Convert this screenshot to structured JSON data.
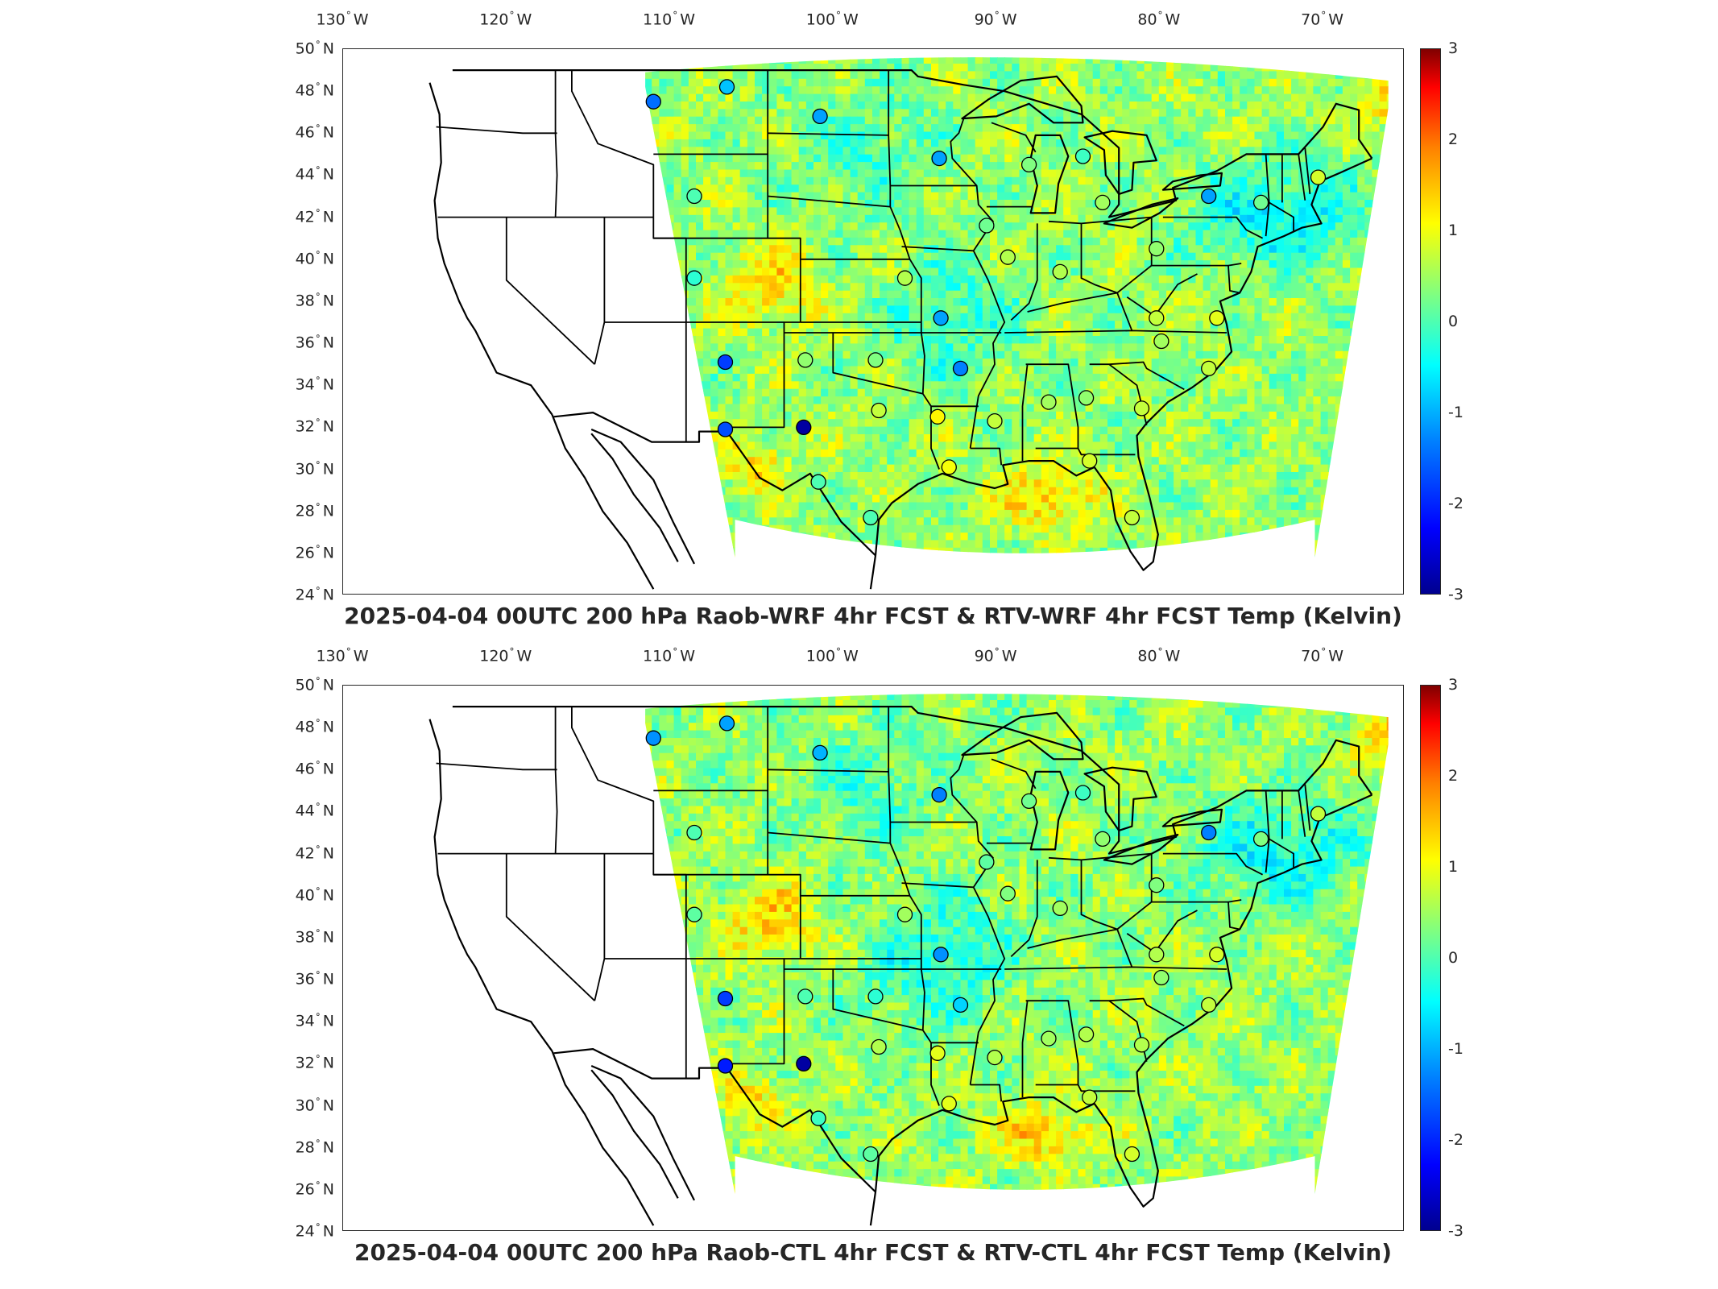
{
  "panels": [
    {
      "title": "2025-04-04 00UTC 200 hPa Raob-WRF 4hr FCST & RTV-WRF 4hr FCST Temp (Kelvin)"
    },
    {
      "title": "2025-04-04 00UTC 200 hPa Raob-CTL 4hr FCST & RTV-CTL 4hr FCST Temp (Kelvin)"
    }
  ],
  "axes": {
    "lon_ticks": [
      {
        "value": "130",
        "hemi": "W"
      },
      {
        "value": "120",
        "hemi": "W"
      },
      {
        "value": "110",
        "hemi": "W"
      },
      {
        "value": "100",
        "hemi": "W"
      },
      {
        "value": "90",
        "hemi": "W"
      },
      {
        "value": "80",
        "hemi": "W"
      },
      {
        "value": "70",
        "hemi": "W"
      }
    ],
    "lat_ticks": [
      {
        "value": "50",
        "hemi": "N"
      },
      {
        "value": "48",
        "hemi": "N"
      },
      {
        "value": "46",
        "hemi": "N"
      },
      {
        "value": "44",
        "hemi": "N"
      },
      {
        "value": "42",
        "hemi": "N"
      },
      {
        "value": "40",
        "hemi": "N"
      },
      {
        "value": "38",
        "hemi": "N"
      },
      {
        "value": "36",
        "hemi": "N"
      },
      {
        "value": "34",
        "hemi": "N"
      },
      {
        "value": "32",
        "hemi": "N"
      },
      {
        "value": "30",
        "hemi": "N"
      },
      {
        "value": "28",
        "hemi": "N"
      },
      {
        "value": "26",
        "hemi": "N"
      },
      {
        "value": "24",
        "hemi": "N"
      }
    ],
    "lon_range": [
      -130,
      -65
    ],
    "lat_range": [
      24,
      50
    ]
  },
  "colorbar": {
    "ticks": [
      "3",
      "2",
      "1",
      "0",
      "-1",
      "-2",
      "-3"
    ],
    "range": [
      -3,
      3
    ],
    "colormap": "jet"
  },
  "stations": [
    {
      "lon": -111.0,
      "lat": 47.5,
      "v_top": -1.6,
      "v_bottom": -1.4
    },
    {
      "lon": -106.5,
      "lat": 48.2,
      "v_top": -1.1,
      "v_bottom": -1.3
    },
    {
      "lon": -100.8,
      "lat": 46.8,
      "v_top": -1.3,
      "v_bottom": -1.2
    },
    {
      "lon": -93.5,
      "lat": 44.8,
      "v_top": -1.3,
      "v_bottom": -1.5
    },
    {
      "lon": -108.5,
      "lat": 43.0,
      "v_top": -0.3,
      "v_bottom": -0.3
    },
    {
      "lon": -108.5,
      "lat": 39.1,
      "v_top": -0.5,
      "v_bottom": -0.2
    },
    {
      "lon": -106.6,
      "lat": 35.1,
      "v_top": -1.9,
      "v_bottom": -1.9
    },
    {
      "lon": -106.6,
      "lat": 31.9,
      "v_top": -1.8,
      "v_bottom": -2.1
    },
    {
      "lon": -101.8,
      "lat": 32.0,
      "v_top": -2.8,
      "v_bottom": -2.8
    },
    {
      "lon": -101.7,
      "lat": 35.2,
      "v_top": 0.1,
      "v_bottom": -0.3
    },
    {
      "lon": -97.4,
      "lat": 35.2,
      "v_top": 0.0,
      "v_bottom": -0.5
    },
    {
      "lon": -97.2,
      "lat": 32.8,
      "v_top": 0.4,
      "v_bottom": 0.3
    },
    {
      "lon": -93.4,
      "lat": 37.2,
      "v_top": -1.3,
      "v_bottom": -1.4
    },
    {
      "lon": -92.2,
      "lat": 34.8,
      "v_top": -1.5,
      "v_bottom": -1.0
    },
    {
      "lon": -95.6,
      "lat": 39.1,
      "v_top": 0.3,
      "v_bottom": 0.2
    },
    {
      "lon": -93.6,
      "lat": 32.5,
      "v_top": 0.8,
      "v_bottom": 0.6
    },
    {
      "lon": -92.9,
      "lat": 30.1,
      "v_top": 0.7,
      "v_bottom": 0.6
    },
    {
      "lon": -97.7,
      "lat": 27.7,
      "v_top": -0.3,
      "v_bottom": -0.2
    },
    {
      "lon": -100.9,
      "lat": 29.4,
      "v_top": -0.3,
      "v_bottom": -0.4
    },
    {
      "lon": -90.1,
      "lat": 32.3,
      "v_top": 0.4,
      "v_bottom": 0.3
    },
    {
      "lon": -86.8,
      "lat": 33.2,
      "v_top": 0.2,
      "v_bottom": 0.2
    },
    {
      "lon": -84.5,
      "lat": 33.4,
      "v_top": 0.1,
      "v_bottom": 0.3
    },
    {
      "lon": -84.3,
      "lat": 30.4,
      "v_top": 0.5,
      "v_bottom": 0.4
    },
    {
      "lon": -81.7,
      "lat": 27.7,
      "v_top": 0.4,
      "v_bottom": 0.5
    },
    {
      "lon": -89.3,
      "lat": 40.1,
      "v_top": 0.3,
      "v_bottom": 0.0
    },
    {
      "lon": -90.6,
      "lat": 41.6,
      "v_top": -0.1,
      "v_bottom": -0.2
    },
    {
      "lon": -88.0,
      "lat": 44.5,
      "v_top": 0.0,
      "v_bottom": -0.1
    },
    {
      "lon": -84.7,
      "lat": 44.9,
      "v_top": -0.4,
      "v_bottom": -0.4
    },
    {
      "lon": -83.5,
      "lat": 42.7,
      "v_top": 0.2,
      "v_bottom": 0.1
    },
    {
      "lon": -86.1,
      "lat": 39.4,
      "v_top": 0.3,
      "v_bottom": 0.2
    },
    {
      "lon": -80.2,
      "lat": 40.5,
      "v_top": 0.1,
      "v_bottom": 0.0
    },
    {
      "lon": -77.0,
      "lat": 43.0,
      "v_top": -1.3,
      "v_bottom": -1.5
    },
    {
      "lon": -73.8,
      "lat": 42.7,
      "v_top": -0.1,
      "v_bottom": 0.0
    },
    {
      "lon": -70.3,
      "lat": 43.9,
      "v_top": 0.5,
      "v_bottom": 0.4
    },
    {
      "lon": -76.5,
      "lat": 37.2,
      "v_top": 0.6,
      "v_bottom": 0.5
    },
    {
      "lon": -80.2,
      "lat": 37.2,
      "v_top": 0.4,
      "v_bottom": 0.3
    },
    {
      "lon": -79.9,
      "lat": 36.1,
      "v_top": 0.2,
      "v_bottom": 0.1
    },
    {
      "lon": -77.0,
      "lat": 34.8,
      "v_top": 0.4,
      "v_bottom": 0.4
    },
    {
      "lon": -81.1,
      "lat": 32.9,
      "v_top": 0.4,
      "v_bottom": 0.3
    }
  ]
}
